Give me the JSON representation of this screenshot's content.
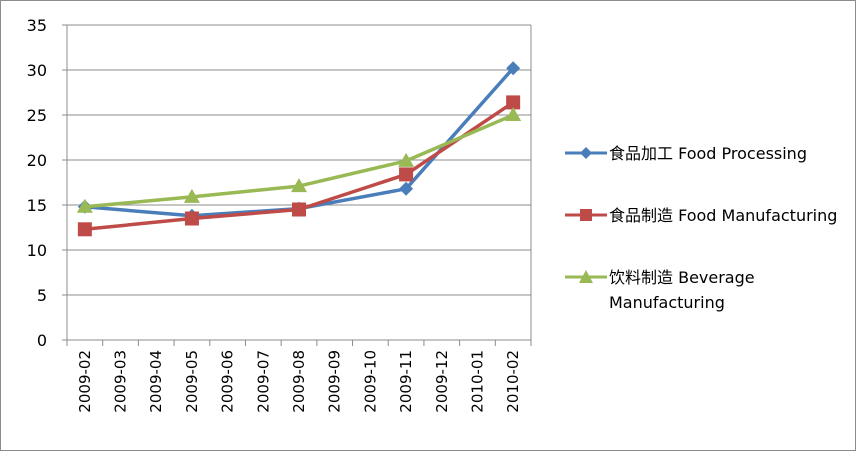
{
  "chart_data": {
    "type": "line",
    "categories": [
      "2009-02",
      "2009-03",
      "2009-04",
      "2009-05",
      "2009-06",
      "2009-07",
      "2009-08",
      "2009-09",
      "2009-10",
      "2009-11",
      "2009-12",
      "2010-01",
      "2010-02"
    ],
    "y_ticks": [
      "0",
      "5",
      "10",
      "15",
      "20",
      "25",
      "30",
      "35"
    ],
    "ylim": [
      0,
      35
    ],
    "grid": true,
    "legend_position": "right",
    "series": [
      {
        "name": "食品加工 Food Processing",
        "color": "#4a7ebb",
        "marker": "diamond",
        "points": [
          {
            "x": "2009-02",
            "y": 14.8
          },
          {
            "x": "2009-05",
            "y": 13.8
          },
          {
            "x": "2009-08",
            "y": 14.6
          },
          {
            "x": "2009-11",
            "y": 16.8
          },
          {
            "x": "2010-02",
            "y": 30.2
          }
        ]
      },
      {
        "name": "食品制造 Food Manufacturing",
        "color": "#be4b48",
        "marker": "square",
        "points": [
          {
            "x": "2009-02",
            "y": 12.3
          },
          {
            "x": "2009-05",
            "y": 13.5
          },
          {
            "x": "2009-08",
            "y": 14.5
          },
          {
            "x": "2009-11",
            "y": 18.4
          },
          {
            "x": "2010-02",
            "y": 26.4
          }
        ]
      },
      {
        "name": "饮料制造 Beverage Manufacturing",
        "color": "#98b954",
        "marker": "triangle",
        "points": [
          {
            "x": "2009-02",
            "y": 14.8
          },
          {
            "x": "2009-05",
            "y": 15.9
          },
          {
            "x": "2009-08",
            "y": 17.1
          },
          {
            "x": "2009-11",
            "y": 19.9
          },
          {
            "x": "2010-02",
            "y": 25.0
          }
        ]
      }
    ]
  }
}
